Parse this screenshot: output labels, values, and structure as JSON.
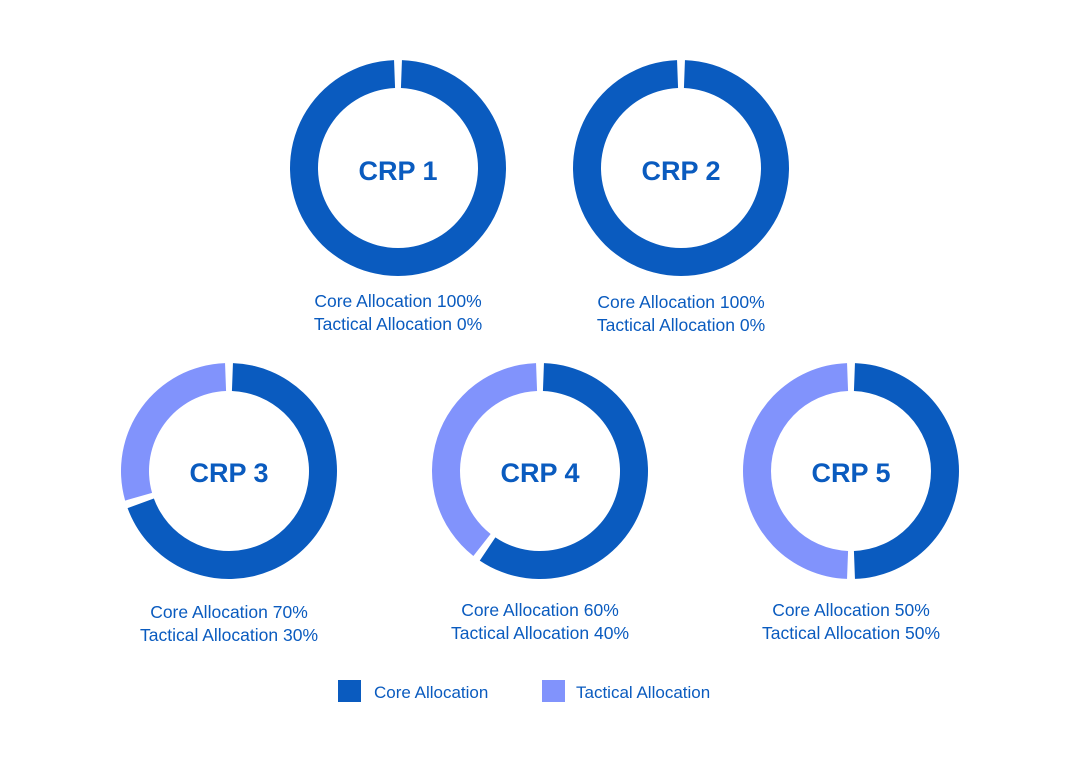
{
  "chart_data": [
    {
      "type": "pie",
      "title": "CRP 1",
      "categories": [
        "Core Allocation",
        "Tactical Allocation"
      ],
      "values": [
        100,
        0
      ],
      "labels": {
        "core": "Core Allocation 100%",
        "tactical": "Tactical Allocation 0%"
      }
    },
    {
      "type": "pie",
      "title": "CRP 2",
      "categories": [
        "Core Allocation",
        "Tactical Allocation"
      ],
      "values": [
        100,
        0
      ],
      "labels": {
        "core": "Core Allocation 100%",
        "tactical": "Tactical Allocation 0%"
      }
    },
    {
      "type": "pie",
      "title": "CRP 3",
      "categories": [
        "Core Allocation",
        "Tactical Allocation"
      ],
      "values": [
        70,
        30
      ],
      "labels": {
        "core": "Core Allocation 70%",
        "tactical": "Tactical Allocation 30%"
      }
    },
    {
      "type": "pie",
      "title": "CRP 4",
      "categories": [
        "Core Allocation",
        "Tactical Allocation"
      ],
      "values": [
        60,
        40
      ],
      "labels": {
        "core": "Core Allocation 60%",
        "tactical": "Tactical Allocation 40%"
      }
    },
    {
      "type": "pie",
      "title": "CRP 5",
      "categories": [
        "Core Allocation",
        "Tactical Allocation"
      ],
      "values": [
        50,
        50
      ],
      "labels": {
        "core": "Core Allocation 50%",
        "tactical": "Tactical Allocation 50%"
      }
    }
  ],
  "legend": {
    "items": [
      {
        "label": "Core Allocation",
        "color": "#0a5bbf"
      },
      {
        "label": "Tactical Allocation",
        "color": "#8193fc"
      }
    ],
    "placement": "bottom"
  },
  "colors": {
    "core": "#0a5bbf",
    "tactical": "#8193fc",
    "text": "#0a5bbf"
  }
}
